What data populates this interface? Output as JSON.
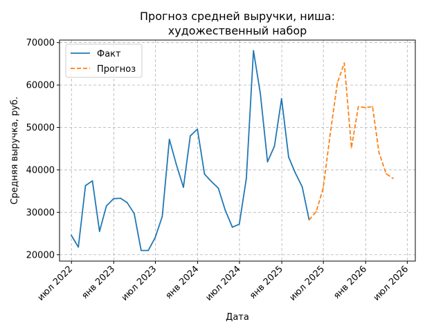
{
  "chart_data": {
    "type": "line",
    "title_lines": [
      "Прогноз средней выручки, ниша:",
      "художественный набор"
    ],
    "xlabel": "Дата",
    "ylabel": "Средняя выручка, руб.",
    "ylim": [
      18500,
      70600
    ],
    "xlim": [
      "2022-05-10",
      "2026-08-05"
    ],
    "yticks": [
      20000,
      30000,
      40000,
      50000,
      60000,
      70000
    ],
    "xticks": [
      {
        "date": "2022-07-01",
        "label": "июл 2022"
      },
      {
        "date": "2023-01-01",
        "label": "янв 2023"
      },
      {
        "date": "2023-07-01",
        "label": "июл 2023"
      },
      {
        "date": "2024-01-01",
        "label": "янв 2024"
      },
      {
        "date": "2024-07-01",
        "label": "июл 2024"
      },
      {
        "date": "2025-01-01",
        "label": "янв 2025"
      },
      {
        "date": "2025-07-01",
        "label": "июл 2025"
      },
      {
        "date": "2026-01-01",
        "label": "янв 2026"
      },
      {
        "date": "2026-07-01",
        "label": "июл 2026"
      }
    ],
    "grid": true,
    "legend_position": "top-left",
    "series": [
      {
        "name": "Факт",
        "color": "#1f77b4",
        "style": "solid",
        "points": [
          [
            "2022-06-30",
            24600
          ],
          [
            "2022-07-31",
            21800
          ],
          [
            "2022-08-31",
            36300
          ],
          [
            "2022-09-30",
            37400
          ],
          [
            "2022-10-31",
            25500
          ],
          [
            "2022-11-30",
            31500
          ],
          [
            "2022-12-31",
            33200
          ],
          [
            "2023-01-31",
            33300
          ],
          [
            "2023-02-28",
            32300
          ],
          [
            "2023-03-31",
            29700
          ],
          [
            "2023-04-30",
            21000
          ],
          [
            "2023-05-31",
            21000
          ],
          [
            "2023-06-30",
            24000
          ],
          [
            "2023-07-31",
            29000
          ],
          [
            "2023-08-31",
            47200
          ],
          [
            "2023-09-30",
            41300
          ],
          [
            "2023-10-31",
            35900
          ],
          [
            "2023-11-30",
            48000
          ],
          [
            "2023-12-31",
            49600
          ],
          [
            "2024-01-31",
            39000
          ],
          [
            "2024-02-29",
            37300
          ],
          [
            "2024-03-31",
            35700
          ],
          [
            "2024-04-30",
            30500
          ],
          [
            "2024-05-31",
            26500
          ],
          [
            "2024-06-30",
            27200
          ],
          [
            "2024-07-31",
            38000
          ],
          [
            "2024-08-31",
            68100
          ],
          [
            "2024-09-30",
            57900
          ],
          [
            "2024-10-31",
            41900
          ],
          [
            "2024-11-30",
            45600
          ],
          [
            "2024-12-31",
            56800
          ],
          [
            "2025-01-31",
            43000
          ],
          [
            "2025-02-28",
            39400
          ],
          [
            "2025-03-31",
            36000
          ],
          [
            "2025-04-30",
            28200
          ]
        ]
      },
      {
        "name": "Прогноз",
        "color": "#ff7f0e",
        "style": "dashed",
        "points": [
          [
            "2025-04-30",
            28200
          ],
          [
            "2025-05-31",
            30200
          ],
          [
            "2025-06-30",
            35700
          ],
          [
            "2025-07-31",
            48500
          ],
          [
            "2025-08-31",
            60500
          ],
          [
            "2025-09-30",
            65200
          ],
          [
            "2025-10-31",
            45200
          ],
          [
            "2025-11-30",
            54900
          ],
          [
            "2025-12-31",
            54700
          ],
          [
            "2026-01-31",
            54900
          ],
          [
            "2026-02-28",
            44100
          ],
          [
            "2026-03-31",
            39100
          ],
          [
            "2026-04-30",
            38000
          ]
        ]
      }
    ]
  }
}
